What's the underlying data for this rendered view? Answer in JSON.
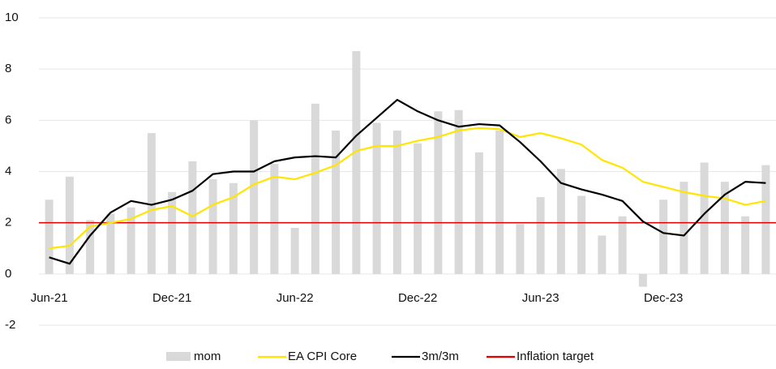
{
  "chart_data": {
    "type": "bar_line",
    "categories": [
      "Jun-21",
      null,
      null,
      null,
      null,
      null,
      "Dec-21",
      null,
      null,
      null,
      null,
      null,
      "Jun-22",
      null,
      null,
      null,
      null,
      null,
      "Dec-22",
      null,
      null,
      null,
      null,
      null,
      "Jun-23",
      null,
      null,
      null,
      null,
      null,
      "Dec-23",
      null,
      null,
      null,
      null,
      null
    ],
    "series": [
      {
        "name": "mom",
        "kind": "bar",
        "color": "#d9d9d9",
        "values": [
          2.9,
          3.8,
          2.1,
          2.35,
          2.6,
          5.5,
          3.2,
          4.4,
          3.7,
          3.55,
          6.0,
          4.3,
          1.8,
          6.65,
          5.6,
          8.7,
          5.9,
          5.6,
          5.1,
          6.35,
          6.4,
          4.75,
          5.6,
          1.95,
          3.0,
          4.1,
          3.05,
          1.5,
          2.25,
          -0.5,
          2.9,
          3.6,
          4.35,
          3.6,
          2.25,
          4.25
        ]
      },
      {
        "name": "EA CPI Core",
        "kind": "line",
        "color": "#ffe600",
        "values": [
          1.0,
          1.1,
          1.85,
          2.0,
          2.15,
          2.5,
          2.65,
          2.25,
          2.7,
          3.0,
          3.5,
          3.8,
          3.7,
          3.95,
          4.25,
          4.8,
          5.0,
          5.0,
          5.2,
          5.35,
          5.6,
          5.7,
          5.65,
          5.35,
          5.5,
          5.3,
          5.05,
          4.45,
          4.15,
          3.6,
          3.4,
          3.2,
          3.05,
          2.95,
          2.7,
          2.85
        ]
      },
      {
        "name": "3m/3m",
        "kind": "line",
        "color": "#000000",
        "values": [
          0.65,
          0.4,
          1.5,
          2.4,
          2.85,
          2.7,
          2.9,
          3.25,
          3.9,
          4.0,
          4.0,
          4.4,
          4.55,
          4.6,
          4.55,
          5.4,
          6.1,
          6.8,
          6.35,
          6.0,
          5.75,
          5.85,
          5.8,
          5.15,
          4.4,
          3.55,
          3.3,
          3.1,
          2.85,
          2.05,
          1.6,
          1.5,
          2.35,
          3.1,
          3.6,
          3.55
        ]
      }
    ],
    "reference_line": {
      "name": "Inflation target",
      "value": 2,
      "color": "#e00000"
    },
    "ylim": [
      -2,
      10
    ],
    "yticks": [
      -2,
      0,
      2,
      4,
      6,
      8,
      10
    ],
    "grid": true
  }
}
